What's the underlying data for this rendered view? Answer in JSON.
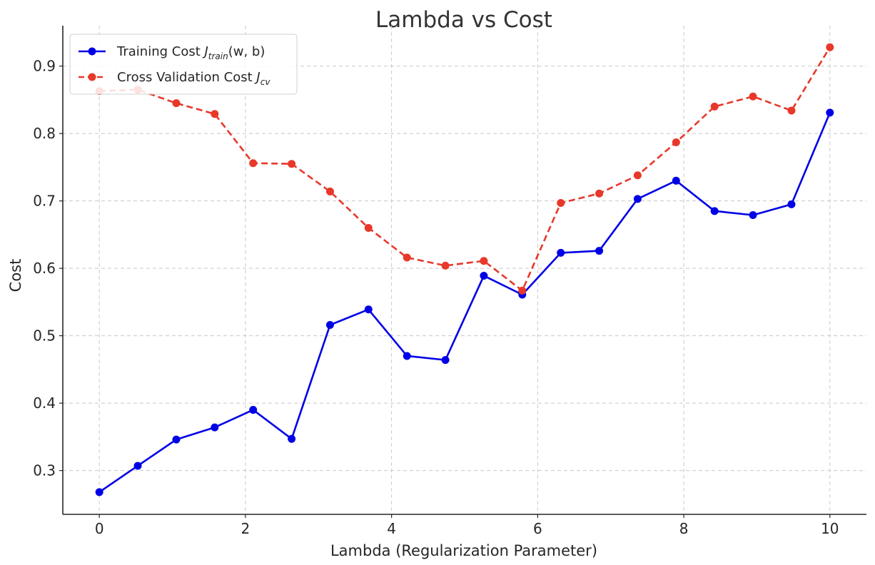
{
  "chart_data": {
    "type": "line",
    "title": "Lambda vs Cost",
    "xlabel": "Lambda (Regularization Parameter)",
    "ylabel": "Cost",
    "xlim": [
      -0.5,
      10.5
    ],
    "ylim": [
      0.235,
      0.96
    ],
    "xticks": [
      0,
      2,
      4,
      6,
      8,
      10
    ],
    "yticks": [
      0.3,
      0.4,
      0.5,
      0.6,
      0.7,
      0.8,
      0.9
    ],
    "grid": true,
    "legend_position": "top-left",
    "x": [
      0,
      0.526,
      1.053,
      1.579,
      2.105,
      2.632,
      3.158,
      3.684,
      4.211,
      4.737,
      5.263,
      5.789,
      6.316,
      6.842,
      7.368,
      7.895,
      8.421,
      8.947,
      9.474,
      10
    ],
    "series": [
      {
        "name_prefix": "Training Cost ",
        "name_math_base": "J",
        "name_math_sub": "train",
        "name_math_suffix": "(w, b)",
        "color": "#0000e6",
        "line_style": "solid",
        "values": [
          0.268,
          0.307,
          0.346,
          0.364,
          0.39,
          0.347,
          0.516,
          0.539,
          0.47,
          0.464,
          0.589,
          0.561,
          0.623,
          0.626,
          0.703,
          0.73,
          0.685,
          0.679,
          0.695,
          0.831
        ]
      },
      {
        "name_prefix": "Cross Validation Cost ",
        "name_math_base": "J",
        "name_math_sub": "cv",
        "name_math_suffix": "",
        "color": "#e8382a",
        "line_style": "dashed",
        "values": [
          0.863,
          0.865,
          0.845,
          0.829,
          0.756,
          0.755,
          0.714,
          0.66,
          0.616,
          0.604,
          0.611,
          0.567,
          0.697,
          0.711,
          0.738,
          0.787,
          0.84,
          0.855,
          0.834,
          0.928
        ]
      }
    ]
  }
}
